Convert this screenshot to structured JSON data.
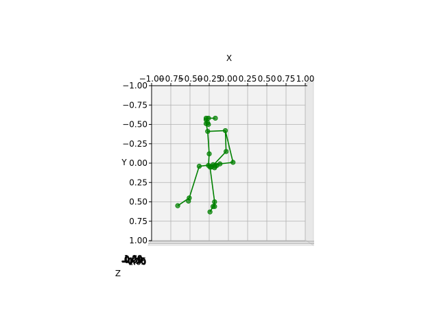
{
  "chart_data": {
    "type": "scatter",
    "projection": "3d",
    "view": "top-down",
    "axes": {
      "x": {
        "label": "X",
        "range": [
          -1.0,
          1.0
        ],
        "ticks": [
          -1.0,
          -0.75,
          -0.5,
          -0.25,
          0.0,
          0.25,
          0.5,
          0.75,
          1.0
        ],
        "tick_labels": [
          "−1.00",
          "−0.75",
          "−0.50",
          "−0.25",
          "0.00",
          "0.25",
          "0.50",
          "0.75",
          "1.00"
        ]
      },
      "y": {
        "label": "Y",
        "range": [
          -1.0,
          1.0
        ],
        "inverted": true,
        "ticks": [
          -1.0,
          -0.75,
          -0.5,
          -0.25,
          0.0,
          0.25,
          0.5,
          0.75,
          1.0
        ],
        "tick_labels": [
          "−1.00",
          "−0.75",
          "−0.50",
          "−0.25",
          "0.00",
          "0.25",
          "0.50",
          "0.75",
          "1.00"
        ]
      },
      "z": {
        "label": "Z",
        "tick_labels": [
          "1.00",
          "0.75",
          "0.50",
          "0.25",
          "0.00",
          "−0.25",
          "−0.50",
          "−0.75",
          "−1.00"
        ]
      }
    },
    "grid": true,
    "color": "#008000",
    "points": [
      {
        "x": -0.29,
        "y": -0.58
      },
      {
        "x": -0.26,
        "y": -0.58
      },
      {
        "x": -0.17,
        "y": -0.58
      },
      {
        "x": -0.29,
        "y": -0.56
      },
      {
        "x": -0.27,
        "y": -0.52
      },
      {
        "x": -0.29,
        "y": -0.51
      },
      {
        "x": -0.26,
        "y": -0.5
      },
      {
        "x": -0.27,
        "y": -0.41
      },
      {
        "x": -0.04,
        "y": -0.42
      },
      {
        "x": -0.25,
        "y": -0.12
      },
      {
        "x": -0.03,
        "y": -0.15
      },
      {
        "x": 0.06,
        "y": -0.01
      },
      {
        "x": -0.26,
        "y": 0.03
      },
      {
        "x": -0.2,
        "y": 0.02
      },
      {
        "x": -0.22,
        "y": 0.05
      },
      {
        "x": -0.17,
        "y": 0.04
      },
      {
        "x": -0.24,
        "y": 0.05
      },
      {
        "x": -0.15,
        "y": 0.03
      },
      {
        "x": -0.18,
        "y": 0.06
      },
      {
        "x": -0.11,
        "y": 0.01
      },
      {
        "x": -0.38,
        "y": 0.04
      },
      {
        "x": -0.51,
        "y": 0.45
      },
      {
        "x": -0.52,
        "y": 0.49
      },
      {
        "x": -0.66,
        "y": 0.55
      },
      {
        "x": -0.18,
        "y": 0.5
      },
      {
        "x": -0.18,
        "y": 0.56
      },
      {
        "x": -0.2,
        "y": 0.56
      },
      {
        "x": -0.24,
        "y": 0.63
      }
    ],
    "edges": [
      [
        0,
        2
      ],
      [
        0,
        5
      ],
      [
        5,
        7
      ],
      [
        7,
        8
      ],
      [
        7,
        9
      ],
      [
        9,
        12
      ],
      [
        8,
        11
      ],
      [
        8,
        10
      ],
      [
        10,
        14
      ],
      [
        11,
        20
      ],
      [
        20,
        21
      ],
      [
        21,
        23
      ],
      [
        12,
        13
      ],
      [
        13,
        16
      ],
      [
        14,
        17
      ],
      [
        16,
        24
      ],
      [
        24,
        26
      ],
      [
        26,
        27
      ],
      [
        24,
        25
      ]
    ]
  }
}
